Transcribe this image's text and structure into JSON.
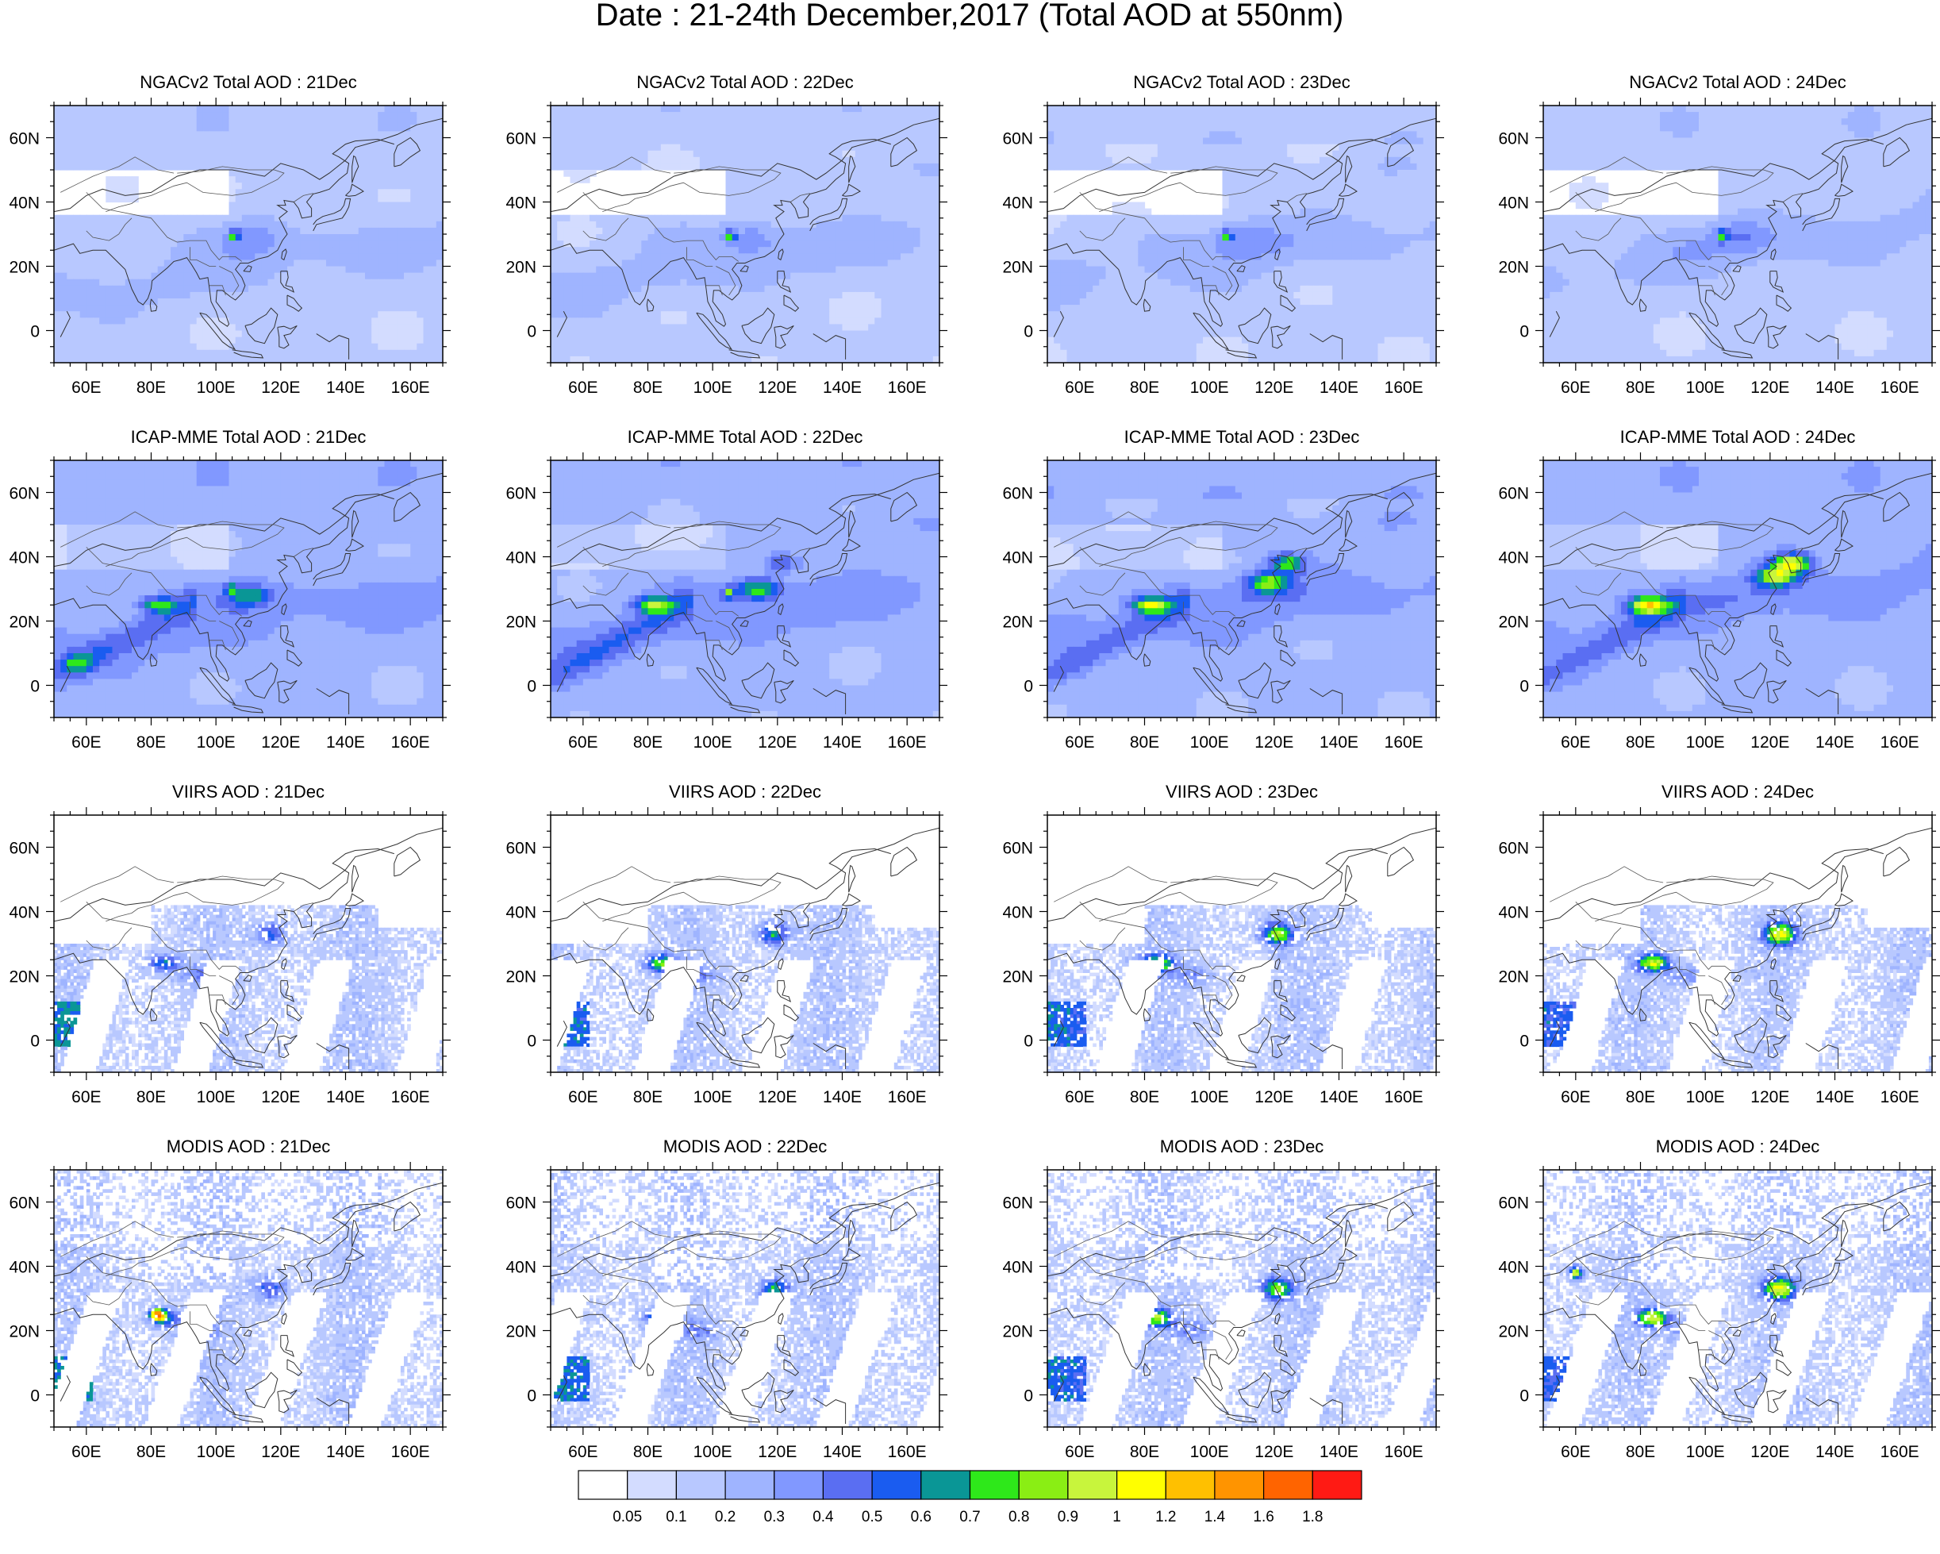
{
  "figure": {
    "title": "Date : 21-24th December,2017 (Total AOD at 550nm)"
  },
  "chart_data": {
    "type": "heatmap",
    "description_rows": [
      "NGACv2 Total AOD",
      "ICAP-MME Total AOD",
      "VIIRS AOD",
      "MODIS AOD"
    ],
    "days": [
      "21Dec",
      "22Dec",
      "23Dec",
      "24Dec"
    ],
    "panels": [
      {
        "title": "NGACv2 Total AOD : 21Dec",
        "source": "NGACv2",
        "day": "21Dec",
        "kind": "model",
        "intensity": 0.25
      },
      {
        "title": "NGACv2 Total AOD : 22Dec",
        "source": "NGACv2",
        "day": "22Dec",
        "kind": "model",
        "intensity": 0.22
      },
      {
        "title": "NGACv2 Total AOD : 23Dec",
        "source": "NGACv2",
        "day": "23Dec",
        "kind": "model",
        "intensity": 0.24
      },
      {
        "title": "NGACv2 Total AOD : 24Dec",
        "source": "NGACv2",
        "day": "24Dec",
        "kind": "model",
        "intensity": 0.26
      },
      {
        "title": "ICAP-MME Total AOD : 21Dec",
        "source": "ICAP-MME",
        "day": "21Dec",
        "kind": "model",
        "intensity": 0.45
      },
      {
        "title": "ICAP-MME Total AOD : 22Dec",
        "source": "ICAP-MME",
        "day": "22Dec",
        "kind": "model",
        "intensity": 0.5
      },
      {
        "title": "ICAP-MME Total AOD : 23Dec",
        "source": "ICAP-MME",
        "day": "23Dec",
        "kind": "model",
        "intensity": 0.6
      },
      {
        "title": "ICAP-MME Total AOD : 24Dec",
        "source": "ICAP-MME",
        "day": "24Dec",
        "kind": "model",
        "intensity": 0.62
      },
      {
        "title": "VIIRS AOD : 21Dec",
        "source": "VIIRS",
        "day": "21Dec",
        "kind": "obs",
        "intensity": 0.4
      },
      {
        "title": "VIIRS AOD : 22Dec",
        "source": "VIIRS",
        "day": "22Dec",
        "kind": "obs",
        "intensity": 0.45
      },
      {
        "title": "VIIRS AOD : 23Dec",
        "source": "VIIRS",
        "day": "23Dec",
        "kind": "obs",
        "intensity": 0.5
      },
      {
        "title": "VIIRS AOD : 24Dec",
        "source": "VIIRS",
        "day": "24Dec",
        "kind": "obs",
        "intensity": 0.55
      },
      {
        "title": "MODIS AOD : 21Dec",
        "source": "MODIS",
        "day": "21Dec",
        "kind": "obs",
        "intensity": 0.45
      },
      {
        "title": "MODIS AOD : 22Dec",
        "source": "MODIS",
        "day": "22Dec",
        "kind": "obs",
        "intensity": 0.5
      },
      {
        "title": "MODIS AOD : 23Dec",
        "source": "MODIS",
        "day": "23Dec",
        "kind": "obs",
        "intensity": 0.55
      },
      {
        "title": "MODIS AOD : 24Dec",
        "source": "MODIS",
        "day": "24Dec",
        "kind": "obs",
        "intensity": 0.6
      }
    ],
    "x_axis": {
      "range_lon": [
        50,
        170
      ],
      "ticks": [
        60,
        80,
        100,
        120,
        140,
        160
      ],
      "tick_labels": [
        "60E",
        "80E",
        "100E",
        "120E",
        "140E",
        "160E"
      ]
    },
    "y_axis": {
      "range_lat": [
        -10,
        70
      ],
      "ticks": [
        0,
        20,
        40,
        60
      ],
      "tick_labels": [
        "0",
        "20N",
        "40N",
        "60N"
      ]
    },
    "colorbar": {
      "levels": [
        "0.05",
        "0.1",
        "0.2",
        "0.3",
        "0.4",
        "0.5",
        "0.6",
        "0.7",
        "0.8",
        "0.9",
        "1",
        "1.2",
        "1.4",
        "1.6",
        "1.8"
      ],
      "colors": [
        "#ffffff",
        "#d3dcff",
        "#b8c8ff",
        "#9fb4ff",
        "#8198ff",
        "#5a6ef2",
        "#1a5cf0",
        "#0a9696",
        "#2ee81a",
        "#8aee14",
        "#c8f53c",
        "#ffff00",
        "#ffc000",
        "#ff9400",
        "#ff6400",
        "#ff1a14"
      ]
    }
  }
}
